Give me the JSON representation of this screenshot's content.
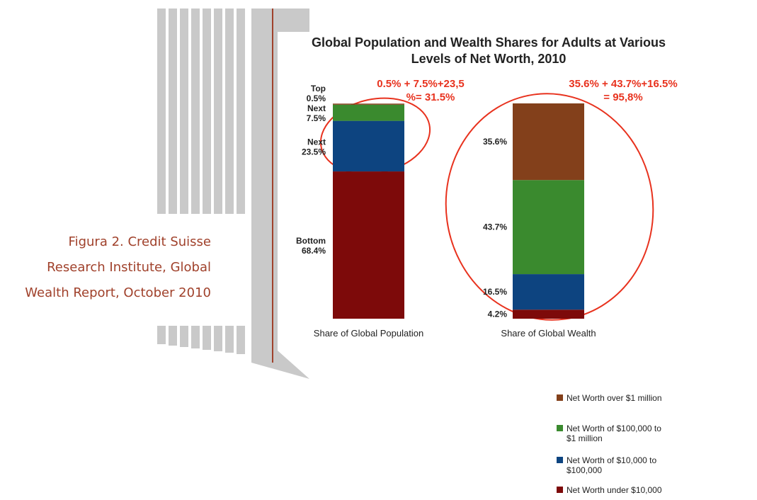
{
  "caption": [
    "Figura 2. Credit Suisse",
    "Research Institute, Global",
    "Wealth Report, October 2010"
  ],
  "chart_data": {
    "type": "stacked_bar",
    "title": "Global Population and Wealth Shares for Adults at Various Levels of Net Worth, 2010",
    "categories": [
      "Share of Global Population",
      "Share of Global Wealth"
    ],
    "ylim": [
      0,
      100
    ],
    "series": [
      {
        "name": "Net Worth under $10,000",
        "color": "#7d0a0a",
        "values": [
          68.4,
          4.2
        ],
        "value_labels": [
          "Bottom 68.4%",
          "4.2%"
        ]
      },
      {
        "name": "Net Worth of $10,000 to $100,000",
        "color": "#0d4480",
        "values": [
          23.5,
          16.5
        ],
        "value_labels": [
          "Next 23.5%",
          "16.5%"
        ]
      },
      {
        "name": "Net Worth of $100,000 to $1 million",
        "color": "#3a8a2e",
        "values": [
          7.5,
          43.7
        ],
        "value_labels": [
          "Next 7.5%",
          "43.7%"
        ]
      },
      {
        "name": "Net Worth over $1 million",
        "color": "#83401b",
        "values": [
          0.5,
          35.6
        ],
        "value_labels": [
          "Top 0.5%",
          "35.6%"
        ]
      }
    ],
    "annotations": [
      "0.5% + 7.5%+23,5",
      "%= 31.5%",
      "35.6% + 43.7%+16.5%",
      "= 95,8%"
    ]
  }
}
